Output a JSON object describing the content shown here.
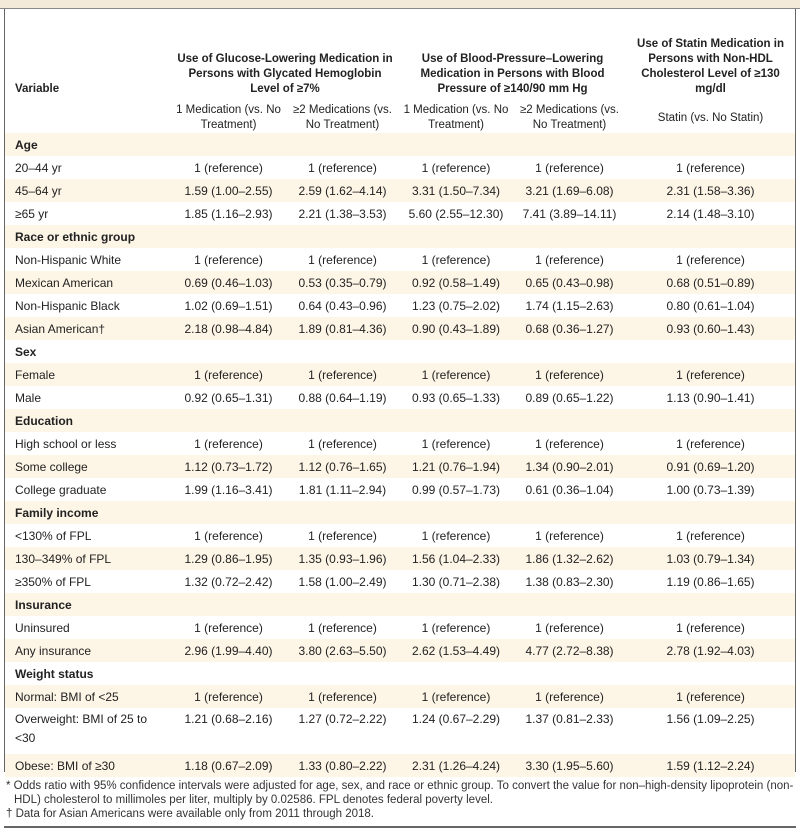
{
  "table": {
    "variable_header": "Variable",
    "group_headers": [
      "Use of Glucose-Lowering Medication in Persons with Glycated Hemoglobin Level of ≥7%",
      "Use of Blood-Pressure–Lowering Medication in Persons with Blood Pressure of ≥140/90 mm Hg",
      "Use of Statin Medication in Persons with Non-HDL Cholesterol Level of ≥130 mg/dl"
    ],
    "sub_headers": [
      "1 Medication (vs. No Treatment)",
      "≥2 Medications (vs. No Treatment)",
      "1 Medication (vs. No Treatment)",
      "≥2 Medications (vs. No Treatment)",
      "Statin (vs. No Statin)"
    ],
    "rows": [
      {
        "label": "Age",
        "group": true
      },
      {
        "label": "20–44 yr",
        "values": [
          "1 (reference)",
          "1 (reference)",
          "1 (reference)",
          "1 (reference)",
          "1 (reference)"
        ]
      },
      {
        "label": "45–64 yr",
        "values": [
          "1.59 (1.00–2.55)",
          "2.59 (1.62–4.14)",
          "3.31 (1.50–7.34)",
          "3.21 (1.69–6.08)",
          "2.31 (1.58–3.36)"
        ]
      },
      {
        "label": "≥65 yr",
        "values": [
          "1.85 (1.16–2.93)",
          "2.21 (1.38–3.53)",
          "5.60 (2.55–12.30)",
          "7.41 (3.89–14.11)",
          "2.14 (1.48–3.10)"
        ]
      },
      {
        "label": "Race or ethnic group",
        "group": true
      },
      {
        "label": "Non-Hispanic White",
        "values": [
          "1 (reference)",
          "1 (reference)",
          "1 (reference)",
          "1 (reference)",
          "1 (reference)"
        ]
      },
      {
        "label": "Mexican American",
        "values": [
          "0.69 (0.46–1.03)",
          "0.53 (0.35–0.79)",
          "0.92 (0.58–1.49)",
          "0.65 (0.43–0.98)",
          "0.68 (0.51–0.89)"
        ]
      },
      {
        "label": "Non-Hispanic Black",
        "values": [
          "1.02 (0.69–1.51)",
          "0.64 (0.43–0.96)",
          "1.23 (0.75–2.02)",
          "1.74 (1.15–2.63)",
          "0.80 (0.61–1.04)"
        ]
      },
      {
        "label": "Asian American†",
        "values": [
          "2.18 (0.98–4.84)",
          "1.89 (0.81–4.36)",
          "0.90 (0.43–1.89)",
          "0.68 (0.36–1.27)",
          "0.93 (0.60–1.43)"
        ]
      },
      {
        "label": "Sex",
        "group": true
      },
      {
        "label": "Female",
        "values": [
          "1 (reference)",
          "1 (reference)",
          "1 (reference)",
          "1 (reference)",
          "1 (reference)"
        ]
      },
      {
        "label": "Male",
        "values": [
          "0.92 (0.65–1.31)",
          "0.88 (0.64–1.19)",
          "0.93 (0.65–1.33)",
          "0.89 (0.65–1.22)",
          "1.13 (0.90–1.41)"
        ]
      },
      {
        "label": "Education",
        "group": true
      },
      {
        "label": "High school or less",
        "values": [
          "1 (reference)",
          "1 (reference)",
          "1 (reference)",
          "1 (reference)",
          "1 (reference)"
        ]
      },
      {
        "label": "Some college",
        "values": [
          "1.12 (0.73–1.72)",
          "1.12 (0.76–1.65)",
          "1.21 (0.76–1.94)",
          "1.34 (0.90–2.01)",
          "0.91 (0.69–1.20)"
        ]
      },
      {
        "label": "College graduate",
        "values": [
          "1.99 (1.16–3.41)",
          "1.81 (1.11–2.94)",
          "0.99 (0.57–1.73)",
          "0.61 (0.36–1.04)",
          "1.00 (0.73–1.39)"
        ]
      },
      {
        "label": "Family income",
        "group": true
      },
      {
        "label": "<130% of FPL",
        "values": [
          "1 (reference)",
          "1 (reference)",
          "1 (reference)",
          "1 (reference)",
          "1 (reference)"
        ]
      },
      {
        "label": "130–349% of FPL",
        "values": [
          "1.29 (0.86–1.95)",
          "1.35 (0.93–1.96)",
          "1.56 (1.04–2.33)",
          "1.86 (1.32–2.62)",
          "1.03 (0.79–1.34)"
        ]
      },
      {
        "label": "≥350% of FPL",
        "values": [
          "1.32 (0.72–2.42)",
          "1.58 (1.00–2.49)",
          "1.30 (0.71–2.38)",
          "1.38 (0.83–2.30)",
          "1.19 (0.86–1.65)"
        ]
      },
      {
        "label": "Insurance",
        "group": true
      },
      {
        "label": "Uninsured",
        "values": [
          "1 (reference)",
          "1 (reference)",
          "1 (reference)",
          "1 (reference)",
          "1 (reference)"
        ]
      },
      {
        "label": "Any insurance",
        "values": [
          "2.96 (1.99–4.40)",
          "3.80 (2.63–5.50)",
          "2.62 (1.53–4.49)",
          "4.77 (2.72–8.38)",
          "2.78 (1.92–4.03)"
        ]
      },
      {
        "label": "Weight status",
        "group": true
      },
      {
        "label": "Normal: BMI of <25",
        "values": [
          "1 (reference)",
          "1 (reference)",
          "1 (reference)",
          "1 (reference)",
          "1 (reference)"
        ]
      },
      {
        "label": "Overweight: BMI of 25 to <30",
        "values": [
          "1.21 (0.68–2.16)",
          "1.27 (0.72–2.22)",
          "1.24 (0.67–2.29)",
          "1.37 (0.81–2.33)",
          "1.56 (1.09–2.25)"
        ]
      },
      {
        "label": "Obese: BMI of ≥30",
        "values": [
          "1.18 (0.67–2.09)",
          "1.33 (0.80–2.22)",
          "2.31 (1.26–4.24)",
          "3.30 (1.95–5.60)",
          "1.59 (1.12–2.24)"
        ]
      }
    ]
  },
  "footnotes": [
    "* Odds ratio with 95% confidence intervals were adjusted for age, sex, and race or ethnic group. To convert the value for non–high-density lipoprotein (non-HDL) cholesterol to millimoles per liter, multiply by 0.02586. FPL denotes federal poverty level.",
    "† Data for Asian Americans were available only from 2011 through 2018."
  ],
  "colors": {
    "shade": "#fdf5e6",
    "border": "#666666"
  }
}
